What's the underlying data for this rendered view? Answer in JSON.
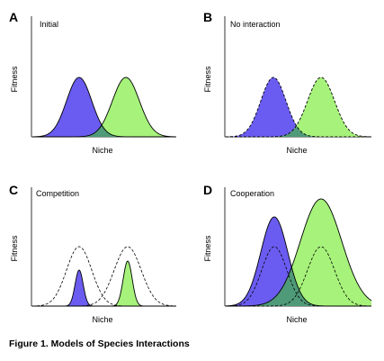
{
  "caption": "Figure 1.  Models of Species Interactions",
  "colors": {
    "species_1": "#6a5cf0",
    "species_2": "#a6f27a",
    "overlap": "#4f9a78",
    "outline": "#000000"
  },
  "panels": [
    {
      "letter": "A",
      "title": "Initial",
      "xlabel": "Niche",
      "ylabel": "Fitness"
    },
    {
      "letter": "B",
      "title": "No interaction",
      "xlabel": "Niche",
      "ylabel": "Fitness"
    },
    {
      "letter": "C",
      "title": "Competition",
      "xlabel": "Niche",
      "ylabel": "Fitness"
    },
    {
      "letter": "D",
      "title": "Cooperation",
      "xlabel": "Niche",
      "ylabel": "Fitness"
    }
  ]
}
